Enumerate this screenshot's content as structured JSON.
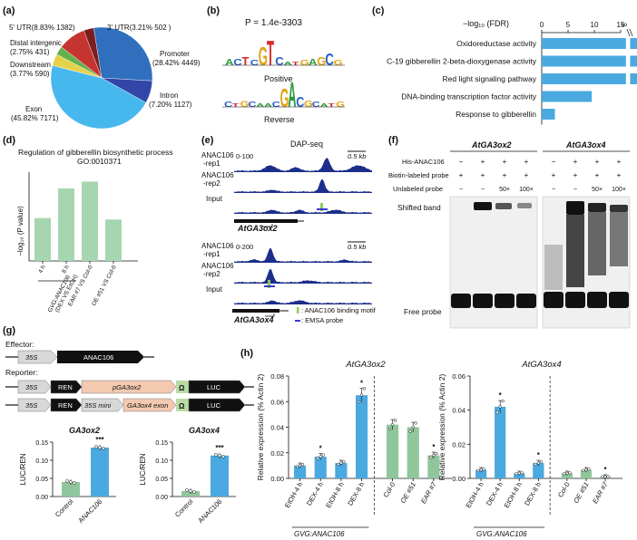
{
  "panel_labels": {
    "a": "(a)",
    "b": "(b)",
    "c": "(c)",
    "d": "(d)",
    "e": "(e)",
    "f": "(f)",
    "g": "(g)",
    "h": "(h)"
  },
  "colors": {
    "blue": "#4aa9e0",
    "green": "#8fc69c",
    "dark_blue": "#1c2e8a",
    "pink": "#f3c9b0",
    "red": "#e0252c"
  },
  "panel_a": {
    "chart_data": {
      "type": "pie",
      "categories": [
        "Promoter",
        "Intron",
        "Exon",
        "Downstream",
        "Distal intergenic",
        "5' UTR",
        "3' UTR"
      ],
      "values": [
        28.42,
        7.2,
        45.82,
        3.77,
        2.75,
        8.83,
        3.21
      ],
      "colors": [
        "#2f6fbe",
        "#3346a8",
        "#47b8ee",
        "#e6d24a",
        "#64b04e",
        "#c63430",
        "#7a1e22"
      ]
    },
    "labels": {
      "utr5": "5' UTR(8.83%  1382)",
      "utr3": "3' UTR(3.21%  502 )",
      "distal1": "Distal intergenic",
      "distal2": "(2.75%  431)",
      "down1": "Downstream",
      "down2": "(3.77%  590)",
      "prom1": "Promoter",
      "prom2": "(28.42%  4449)",
      "intron1": "Intron",
      "intron2": "(7.20%  1127)",
      "exon1": "Exon",
      "exon2": "(45.82%  7171)"
    }
  },
  "panel_b": {
    "pvalue": "P = 1.4e-3303",
    "positive": "Positive",
    "reverse": "Reverse",
    "logo_pos": [
      "A",
      "C",
      "T",
      "C",
      "G",
      "T",
      "C",
      "A",
      "T",
      "G",
      "A",
      "G",
      "C",
      "G"
    ],
    "logo_rev": [
      "C",
      "T",
      "G",
      "C",
      "A",
      "A",
      "C",
      "G",
      "A",
      "C",
      "G",
      "C",
      "A",
      "T",
      "G"
    ]
  },
  "panel_c": {
    "chart_data": {
      "type": "bar",
      "orientation": "horizontal",
      "categories": [
        "Oxidoreductase activity",
        "C-19 gibberellin 2-beta-dioxygenase activity",
        "Red light signaling pathway",
        "DNA-binding transcription factor activity",
        "Response to gibberellin"
      ],
      "values": [
        20,
        20,
        20,
        9.5,
        2.5
      ],
      "xticks": [
        "0",
        "5",
        "10",
        "15",
        "∞"
      ],
      "xlabel": "−log₁₀ (FDR)",
      "color": "#4aa9e0"
    }
  },
  "panel_d": {
    "title1": "Regulation of gibberellin biosynthetic process",
    "title2": "GO:0010371",
    "chart_data": {
      "type": "bar",
      "categories": [
        "4 h",
        "8 h",
        "EAR #7 VS Col-0",
        "OE #51 VS Col-0"
      ],
      "values": [
        1.45,
        2.45,
        2.68,
        1.4
      ],
      "ylabel": "−log₁₀ (P value)",
      "group_label1": "GVG:ANAC106",
      "group_label2": "(DEX VS EtOH)",
      "color": "#a6d6b0"
    }
  },
  "panel_e": {
    "title": "DAP-seq",
    "scale1": "0-100",
    "scale2": "0-200",
    "scale_bar": "0.5 kb",
    "rep1a": "ANAC106",
    "rep1b": "-rep1",
    "rep2a": "ANAC106",
    "rep2b": "-rep2",
    "input": "Input",
    "gene1": "AtGA3ox2",
    "gene2": "AtGA3ox4",
    "legend_motif": ": ANAC106 binding motif",
    "legend_emsa": ": EMSA probe"
  },
  "panel_f": {
    "gene1": "AtGA3ox2",
    "gene2": "AtGA3ox4",
    "row1": "His-ANAC106",
    "row2": "Biotin-labeled probe",
    "row3": "Unlabeled probe",
    "signs_his": [
      "−",
      "+",
      "+",
      "+"
    ],
    "signs_biotin": [
      "+",
      "+",
      "+",
      "+"
    ],
    "signs_unlabeled": [
      "−",
      "−",
      "50×",
      "100×"
    ],
    "shifted": "Shifted band",
    "free": "Free probe"
  },
  "panel_g": {
    "effector": "Effector:",
    "reporter": "Reporter:",
    "p35s": "35S",
    "anac": "ANAC106",
    "ren": "REN",
    "pga3ox2": "pGA3ox2",
    "omega": "Ω",
    "luc": "LUC",
    "mini": "35S mini",
    "exon": "GA3ox4 exon",
    "chart_data": [
      {
        "type": "bar",
        "title": "GA3ox2",
        "categories": [
          "Control",
          "ANAC106"
        ],
        "values": [
          0.04,
          0.135
        ],
        "ylim": [
          0,
          0.15
        ],
        "yticks": [
          "0.00",
          "0.05",
          "0.10",
          "0.15"
        ],
        "ylabel": "LUC/REN",
        "significance": "***"
      },
      {
        "type": "bar",
        "title": "GA3ox4",
        "categories": [
          "Control",
          "ANAC106"
        ],
        "values": [
          0.015,
          0.113
        ],
        "ylim": [
          0,
          0.15
        ],
        "yticks": [
          "0.00",
          "0.05",
          "0.10",
          "0.15"
        ],
        "ylabel": "LUC/REN",
        "significance": "***"
      }
    ]
  },
  "panel_h": {
    "ylabel": "Relative expression (% Actin 2)",
    "group_label": "GVG:ANAC106",
    "chart_data": [
      {
        "type": "bar",
        "title": "AtGA3ox2",
        "categories": [
          "EtOH-4 h",
          "DEX-4 h",
          "EtOH-8 h",
          "DEX-8 h",
          "Col-0",
          "OE #51",
          "EAR #7"
        ],
        "values": [
          0.01,
          0.017,
          0.012,
          0.065,
          0.042,
          0.04,
          0.018
        ],
        "ylim": [
          0,
          0.08
        ],
        "yticks": [
          "0.00",
          "0.02",
          "0.04",
          "0.06",
          "0.08"
        ],
        "stars": [
          "",
          "*",
          "",
          "*",
          "",
          "",
          "*"
        ]
      },
      {
        "type": "bar",
        "title": "AtGA3ox4",
        "categories": [
          "EtOH-4 h",
          "DEX-4 h",
          "EtOH-8 h",
          "DEX-8 h",
          "Col-0",
          "OE #51",
          "EAR #7"
        ],
        "values": [
          0.005,
          0.042,
          0.003,
          0.009,
          0.003,
          0.005,
          0.001
        ],
        "ylim": [
          0,
          0.06
        ],
        "yticks": [
          "0.00",
          "0.02",
          "0.04",
          "0.06"
        ],
        "stars": [
          "",
          "*",
          "",
          "*",
          "",
          "",
          "*"
        ]
      }
    ]
  }
}
